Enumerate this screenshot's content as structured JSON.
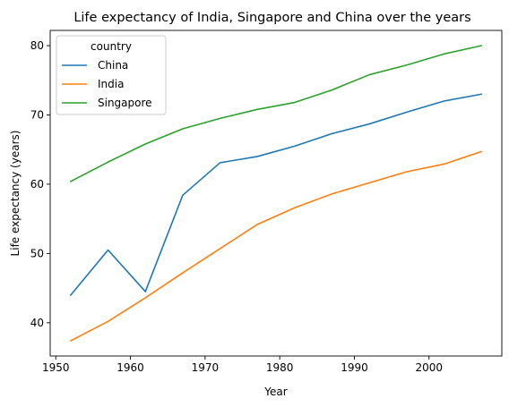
{
  "chart_data": {
    "type": "line",
    "title": "Life expectancy of India, Singapore and China over the years",
    "xlabel": "Year",
    "ylabel": "Life expectancy (years)",
    "xlim": [
      1949.25,
      2009.75
    ],
    "ylim": [
      35.2,
      82.2
    ],
    "xticks": [
      1950,
      1960,
      1970,
      1980,
      1990,
      2000
    ],
    "yticks": [
      40,
      50,
      60,
      70,
      80
    ],
    "grid": false,
    "legend": {
      "title": "country",
      "position": "top-left"
    },
    "x": [
      1952,
      1957,
      1962,
      1967,
      1972,
      1977,
      1982,
      1987,
      1992,
      1997,
      2002,
      2007
    ],
    "series": [
      {
        "name": "China",
        "color": "#1f77b4",
        "values": [
          44.0,
          50.5,
          44.5,
          58.4,
          63.1,
          64.0,
          65.5,
          67.3,
          68.7,
          70.4,
          72.0,
          73.0
        ]
      },
      {
        "name": "India",
        "color": "#ff7f0e",
        "values": [
          37.4,
          40.2,
          43.6,
          47.2,
          50.7,
          54.2,
          56.6,
          58.6,
          60.2,
          61.8,
          62.9,
          64.7
        ]
      },
      {
        "name": "Singapore",
        "color": "#2ca02c",
        "values": [
          60.4,
          63.2,
          65.8,
          68.0,
          69.5,
          70.8,
          71.8,
          73.6,
          75.8,
          77.2,
          78.8,
          80.0
        ]
      }
    ]
  }
}
